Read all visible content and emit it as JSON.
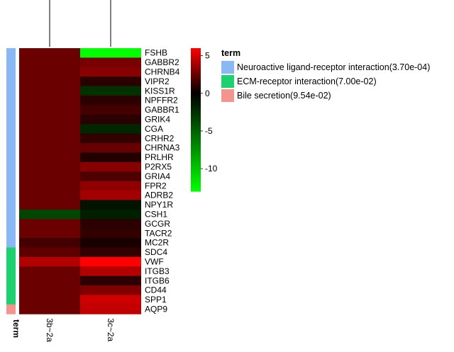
{
  "chart_data": {
    "type": "heatmap",
    "columns": [
      "3b~2a",
      "3c~2a"
    ],
    "rows": [
      "FSHB",
      "GABBR2",
      "CHRNB4",
      "VIPR2",
      "KISS1R",
      "NPFFR2",
      "GABBR1",
      "GRIK4",
      "CGA",
      "CRHR2",
      "CHRNA3",
      "PRLHR",
      "P2RX5",
      "GRIA4",
      "FPR2",
      "ADRB2",
      "NPY1R",
      "CSH1",
      "GCGR",
      "TACR2",
      "MC2R",
      "SDC4",
      "VWF",
      "ITGB3",
      "ITGB6",
      "CD44",
      "SPP1",
      "AQP9"
    ],
    "values": [
      [
        2.5,
        -13.0
      ],
      [
        2.5,
        2.8
      ],
      [
        2.5,
        3.2
      ],
      [
        2.5,
        1.0
      ],
      [
        2.5,
        -2.5
      ],
      [
        2.5,
        1.0
      ],
      [
        2.5,
        1.6
      ],
      [
        2.5,
        1.0
      ],
      [
        2.5,
        -2.0
      ],
      [
        2.5,
        1.2
      ],
      [
        2.5,
        2.4
      ],
      [
        2.5,
        0.8
      ],
      [
        2.5,
        3.2
      ],
      [
        2.5,
        1.8
      ],
      [
        2.5,
        3.4
      ],
      [
        2.5,
        3.8
      ],
      [
        2.5,
        -1.0
      ],
      [
        -3.5,
        -1.6
      ],
      [
        2.5,
        1.0
      ],
      [
        2.5,
        1.2
      ],
      [
        1.6,
        0.6
      ],
      [
        2.2,
        1.2
      ],
      [
        4.2,
        6.0
      ],
      [
        2.5,
        4.2
      ],
      [
        2.5,
        1.0
      ],
      [
        2.5,
        3.0
      ],
      [
        2.5,
        4.8
      ],
      [
        2.5,
        4.6
      ]
    ],
    "row_terms": [
      0,
      0,
      0,
      0,
      0,
      0,
      0,
      0,
      0,
      0,
      0,
      0,
      0,
      0,
      0,
      0,
      0,
      0,
      0,
      0,
      0,
      1,
      1,
      1,
      1,
      1,
      1,
      2
    ],
    "colorbar": {
      "min": -13,
      "max": 6,
      "ticks": [
        5,
        0,
        -5,
        -10
      ],
      "tick_labels": [
        "5",
        "0",
        "-5",
        "-10"
      ]
    },
    "legend": {
      "title": "term",
      "entries": [
        {
          "label": "Neuroactive ligand-receptor interaction(3.70e-04)",
          "color": "#8AB8F5"
        },
        {
          "label": "ECM-receptor interaction(7.00e-02)",
          "color": "#1ED06E"
        },
        {
          "label": "Bile secretion(9.54e-02)",
          "color": "#F4948E"
        }
      ]
    },
    "term_axis_label": "term"
  },
  "colors": {
    "high": "#ff0000",
    "mid": "#000000",
    "low": "#00ff00"
  }
}
